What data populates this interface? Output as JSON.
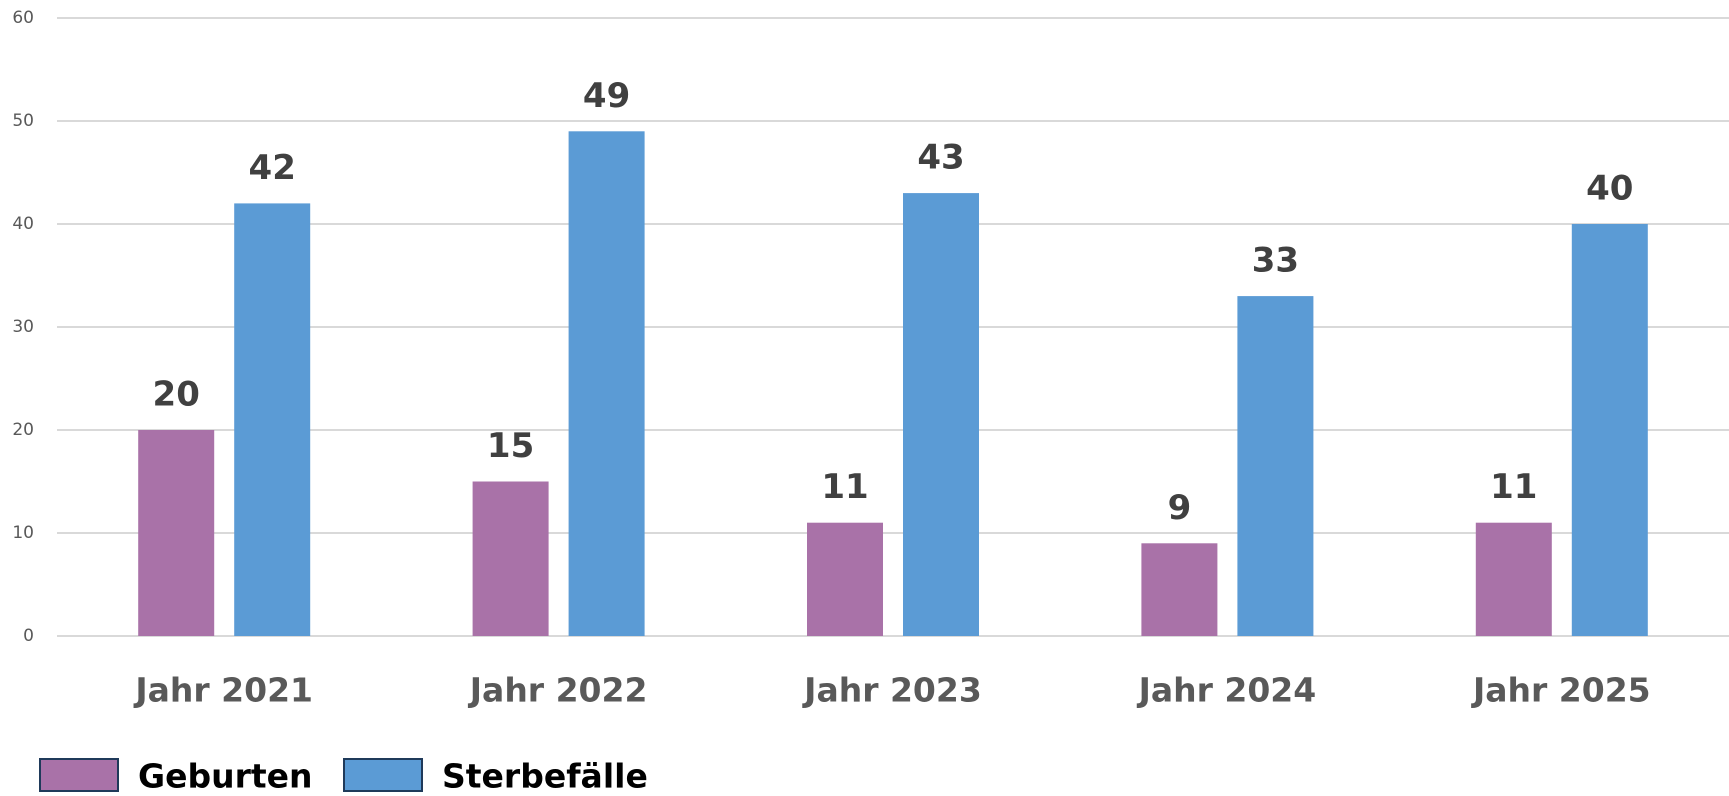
{
  "chart_data": {
    "type": "bar",
    "categories": [
      "Jahr 2021",
      "Jahr 2022",
      "Jahr 2023",
      "Jahr 2024",
      "Jahr 2025"
    ],
    "series": [
      {
        "name": "Geburten",
        "color": "#a972a8",
        "values": [
          20,
          15,
          11,
          9,
          11
        ]
      },
      {
        "name": "Sterbefälle",
        "color": "#5b9bd5",
        "values": [
          42,
          49,
          43,
          33,
          40
        ]
      }
    ],
    "ylim": [
      0,
      60
    ],
    "yticks": [
      0,
      10,
      20,
      30,
      40,
      50,
      60
    ],
    "grid": true,
    "legend": "bottom-left"
  }
}
